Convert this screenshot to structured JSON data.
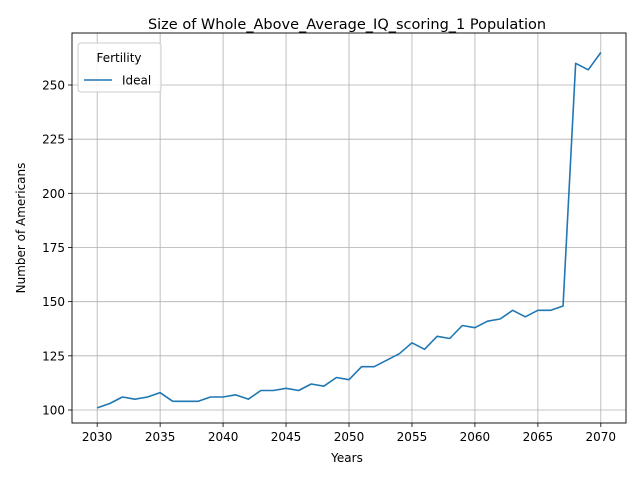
{
  "chart_data": {
    "type": "line",
    "title": "Size of Whole_Above_Average_IQ_scoring_1 Population",
    "xlabel": "Years",
    "ylabel": "Number of Americans",
    "xlim": [
      2028,
      2072
    ],
    "ylim": [
      94,
      274
    ],
    "x_ticks": [
      2030,
      2035,
      2040,
      2045,
      2050,
      2055,
      2060,
      2065,
      2070
    ],
    "y_ticks": [
      100,
      125,
      150,
      175,
      200,
      225,
      250
    ],
    "grid": true,
    "legend": {
      "title": "Fertility",
      "position": "top-left"
    },
    "x": [
      2030,
      2031,
      2032,
      2033,
      2034,
      2035,
      2036,
      2037,
      2038,
      2039,
      2040,
      2041,
      2042,
      2043,
      2044,
      2045,
      2046,
      2047,
      2048,
      2049,
      2050,
      2051,
      2052,
      2053,
      2054,
      2055,
      2056,
      2057,
      2058,
      2059,
      2060,
      2061,
      2062,
      2063,
      2064,
      2065,
      2066,
      2067,
      2068,
      2069,
      2070
    ],
    "series": [
      {
        "name": "Ideal",
        "color": "#1f77b4",
        "values": [
          101,
          103,
          106,
          105,
          106,
          108,
          104,
          104,
          104,
          106,
          106,
          107,
          105,
          109,
          109,
          110,
          109,
          112,
          111,
          115,
          114,
          120,
          120,
          123,
          126,
          131,
          128,
          134,
          133,
          139,
          138,
          141,
          142,
          146,
          143,
          146,
          146,
          148,
          260,
          257,
          265
        ]
      }
    ]
  }
}
